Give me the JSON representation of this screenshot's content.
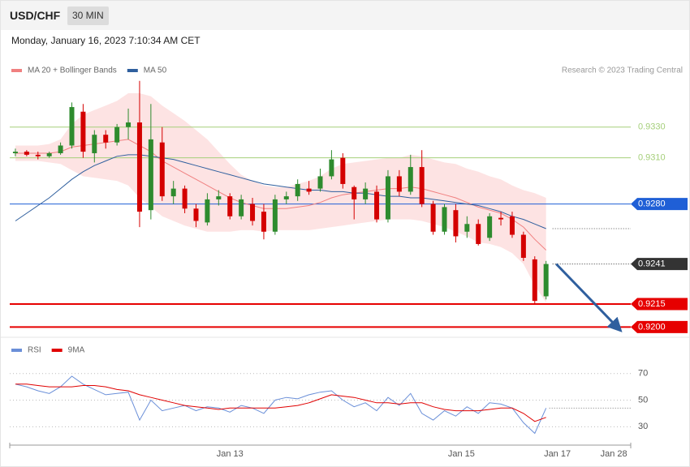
{
  "header": {
    "symbol": "USD/CHF",
    "interval": "30 MIN",
    "timestamp": "Monday, January 16, 2023 7:10:34 AM CET"
  },
  "chart_data": [
    {
      "type": "candlestick",
      "credit": "Research © 2023 Trading Central",
      "xlim": [
        -0.5,
        54.5
      ],
      "ylim": [
        0.9196,
        0.9362
      ],
      "up_color": "#2e8b2e",
      "down_color": "#d40000",
      "candles": [
        [
          0.9313,
          0.9316,
          0.9311,
          0.9314
        ],
        [
          0.9314,
          0.9315,
          0.9311,
          0.9312
        ],
        [
          0.9312,
          0.9314,
          0.9309,
          0.9311
        ],
        [
          0.9311,
          0.9314,
          0.931,
          0.9313
        ],
        [
          0.9313,
          0.932,
          0.9312,
          0.9318
        ],
        [
          0.9318,
          0.9346,
          0.9316,
          0.9343
        ],
        [
          0.934,
          0.9345,
          0.931,
          0.9314
        ],
        [
          0.9313,
          0.9328,
          0.9307,
          0.9325
        ],
        [
          0.9325,
          0.9328,
          0.9316,
          0.932
        ],
        [
          0.932,
          0.9332,
          0.9318,
          0.933
        ],
        [
          0.933,
          0.9342,
          0.9322,
          0.9333
        ],
        [
          0.9333,
          0.936,
          0.9265,
          0.9275
        ],
        [
          0.9276,
          0.9345,
          0.927,
          0.9322
        ],
        [
          0.932,
          0.933,
          0.9282,
          0.9285
        ],
        [
          0.9285,
          0.9295,
          0.928,
          0.929
        ],
        [
          0.929,
          0.9292,
          0.9274,
          0.9277
        ],
        [
          0.9277,
          0.928,
          0.9265,
          0.9269
        ],
        [
          0.9268,
          0.9287,
          0.9266,
          0.9283
        ],
        [
          0.9283,
          0.9289,
          0.9279,
          0.9285
        ],
        [
          0.9285,
          0.9287,
          0.927,
          0.9272
        ],
        [
          0.9272,
          0.9286,
          0.927,
          0.9283
        ],
        [
          0.928,
          0.9284,
          0.9266,
          0.9269
        ],
        [
          0.9275,
          0.928,
          0.9257,
          0.9262
        ],
        [
          0.9262,
          0.9286,
          0.926,
          0.9283
        ],
        [
          0.9283,
          0.9288,
          0.928,
          0.9285
        ],
        [
          0.9285,
          0.9296,
          0.9282,
          0.9293
        ],
        [
          0.929,
          0.9295,
          0.9286,
          0.9288
        ],
        [
          0.929,
          0.9303,
          0.9288,
          0.9298
        ],
        [
          0.9298,
          0.9315,
          0.9296,
          0.9309
        ],
        [
          0.931,
          0.9313,
          0.929,
          0.9293
        ],
        [
          0.9291,
          0.9292,
          0.927,
          0.9283
        ],
        [
          0.9283,
          0.9294,
          0.928,
          0.929
        ],
        [
          0.9288,
          0.9292,
          0.9268,
          0.927
        ],
        [
          0.927,
          0.9302,
          0.9268,
          0.9298
        ],
        [
          0.9298,
          0.9302,
          0.9285,
          0.9288
        ],
        [
          0.9288,
          0.9312,
          0.9286,
          0.9304
        ],
        [
          0.9304,
          0.9315,
          0.9278,
          0.928
        ],
        [
          0.928,
          0.9282,
          0.926,
          0.9262
        ],
        [
          0.9262,
          0.928,
          0.926,
          0.9278
        ],
        [
          0.9276,
          0.928,
          0.9255,
          0.9259
        ],
        [
          0.9262,
          0.9272,
          0.9258,
          0.9267
        ],
        [
          0.9267,
          0.927,
          0.9253,
          0.9254
        ],
        [
          0.9258,
          0.9274,
          0.9256,
          0.9272
        ],
        [
          0.9271,
          0.9275,
          0.9266,
          0.927
        ],
        [
          0.9272,
          0.9275,
          0.9258,
          0.926
        ],
        [
          0.926,
          0.9262,
          0.9243,
          0.9245
        ],
        [
          0.9244,
          0.9246,
          0.9215,
          0.9217
        ],
        [
          0.922,
          0.9243,
          0.9218,
          0.9241
        ]
      ],
      "series": [
        {
          "name": "MA 20 + Bollinger Bands",
          "color": "#f08080",
          "band_color": "#fde3e3",
          "values": [
            0.9313,
            0.9313,
            0.9313,
            0.9313,
            0.9314,
            0.9317,
            0.9318,
            0.9319,
            0.932,
            0.9321,
            0.9322,
            0.9318,
            0.9314,
            0.9308,
            0.9304,
            0.93,
            0.9296,
            0.9292,
            0.9288,
            0.9284,
            0.9281,
            0.9279,
            0.9277,
            0.9277,
            0.9277,
            0.9278,
            0.9279,
            0.9281,
            0.9284,
            0.9286,
            0.9287,
            0.9288,
            0.9289,
            0.929,
            0.929,
            0.9291,
            0.929,
            0.9288,
            0.9286,
            0.9284,
            0.9281,
            0.9278,
            0.9276,
            0.9274,
            0.927,
            0.9265,
            0.9257,
            0.925
          ],
          "upper": [
            0.9318,
            0.9318,
            0.9318,
            0.9319,
            0.9322,
            0.9332,
            0.9338,
            0.9341,
            0.9344,
            0.9347,
            0.9352,
            0.9352,
            0.935,
            0.9344,
            0.9339,
            0.9334,
            0.9328,
            0.9322,
            0.9314,
            0.9306,
            0.9299,
            0.9295,
            0.9292,
            0.9291,
            0.9291,
            0.9293,
            0.9295,
            0.9298,
            0.9303,
            0.9306,
            0.9307,
            0.9308,
            0.9309,
            0.931,
            0.931,
            0.9312,
            0.9311,
            0.9309,
            0.9307,
            0.9306,
            0.9303,
            0.9301,
            0.9298,
            0.9296,
            0.9292,
            0.9289,
            0.9287,
            0.9284
          ],
          "lower": [
            0.9308,
            0.9308,
            0.9308,
            0.9307,
            0.9306,
            0.9302,
            0.9298,
            0.9297,
            0.9296,
            0.9295,
            0.9292,
            0.9284,
            0.9278,
            0.9272,
            0.9269,
            0.9266,
            0.9264,
            0.9262,
            0.9262,
            0.9262,
            0.9263,
            0.9263,
            0.9262,
            0.9263,
            0.9263,
            0.9263,
            0.9263,
            0.9264,
            0.9265,
            0.9266,
            0.9267,
            0.9268,
            0.9269,
            0.927,
            0.927,
            0.927,
            0.9269,
            0.9267,
            0.9265,
            0.9262,
            0.9259,
            0.9255,
            0.9254,
            0.9252,
            0.9248,
            0.9241,
            0.9227,
            0.9216
          ]
        },
        {
          "name": "MA 50",
          "color": "#2f5f9e",
          "values": [
            0.9269,
            0.9274,
            0.9279,
            0.9284,
            0.929,
            0.9296,
            0.9301,
            0.9305,
            0.9308,
            0.9311,
            0.9312,
            0.9312,
            0.9311,
            0.931,
            0.9309,
            0.9307,
            0.9305,
            0.9303,
            0.9301,
            0.9299,
            0.9297,
            0.9295,
            0.9293,
            0.9292,
            0.9291,
            0.929,
            0.9289,
            0.9289,
            0.9288,
            0.9288,
            0.9287,
            0.9287,
            0.9286,
            0.9285,
            0.9285,
            0.9284,
            0.9284,
            0.9283,
            0.9282,
            0.9281,
            0.928,
            0.9279,
            0.9277,
            0.9275,
            0.9272,
            0.927,
            0.9267,
            0.9264
          ]
        }
      ],
      "levels": {
        "values": [
          0.933,
          0.931,
          0.928,
          0.9241,
          0.9215,
          0.92
        ],
        "value_labels": [
          "0.9330",
          "0.9310",
          "0.9280",
          "0.9241",
          "0.9215",
          "0.9200"
        ],
        "colors": [
          "#a5cf7a",
          "#a5cf7a",
          "#1f5fd6",
          "#333333",
          "#e60000",
          "#e60000"
        ],
        "styles": [
          "line",
          "line",
          "box",
          "dotted-box",
          "thick-box",
          "thick-box"
        ]
      },
      "forecast": {
        "x": [
          47.9,
          53.3
        ],
        "values": [
          0.9241,
          0.92
        ],
        "color": "#2f5f9e"
      }
    },
    {
      "type": "line",
      "xlim": [
        -0.5,
        54.5
      ],
      "ylim": [
        18,
        82
      ],
      "yticks": [
        30,
        50,
        70
      ],
      "grid": true,
      "xticks": [
        {
          "value": 19,
          "label": "Jan 13"
        },
        {
          "value": 39.5,
          "label": "Jan 15"
        },
        {
          "value": 48,
          "label": "Jan 17"
        },
        {
          "value": 53,
          "label": "Jan 28"
        }
      ],
      "series": [
        {
          "name": "RSI",
          "color": "#6a8fd8",
          "values": [
            62,
            60,
            57,
            55,
            60,
            68,
            62,
            58,
            54,
            55,
            56,
            35,
            50,
            42,
            44,
            46,
            42,
            45,
            44,
            41,
            46,
            44,
            40,
            50,
            52,
            51,
            54,
            56,
            57,
            50,
            45,
            48,
            42,
            52,
            46,
            55,
            40,
            35,
            42,
            38,
            45,
            40,
            48,
            47,
            44,
            33,
            25,
            44
          ]
        },
        {
          "name": "9MA",
          "color": "#e00000",
          "values": [
            62,
            62,
            61,
            60,
            60,
            60,
            61,
            61,
            60,
            58,
            57,
            54,
            52,
            50,
            48,
            46,
            45,
            44,
            43,
            44,
            44,
            44,
            44,
            44,
            45,
            46,
            48,
            51,
            54,
            53,
            52,
            50,
            48,
            48,
            47,
            48,
            48,
            45,
            43,
            42,
            42,
            42,
            43,
            44,
            44,
            40,
            34,
            37
          ]
        }
      ]
    }
  ]
}
